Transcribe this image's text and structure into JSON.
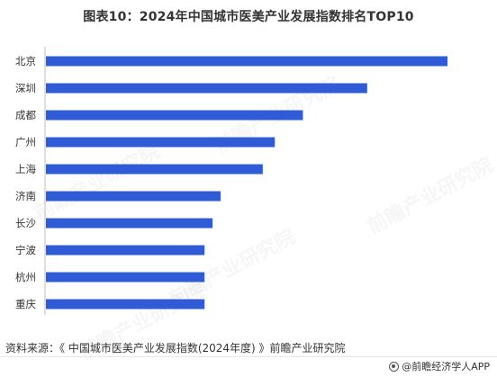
{
  "chart_data": {
    "type": "bar",
    "orientation": "horizontal",
    "title": "图表10：2024年中国城市医美产业发展指数排名TOP10",
    "categories": [
      "北京",
      "深圳",
      "成都",
      "广州",
      "上海",
      "济南",
      "长沙",
      "宁波",
      "杭州",
      "重庆"
    ],
    "values": [
      100,
      80.0,
      64.0,
      57.0,
      54.0,
      43.5,
      41.5,
      39.5,
      39.5,
      39.5
    ],
    "xlim": [
      0,
      100
    ],
    "grid": false,
    "legend": "none",
    "bar_color": "#2f5cd6"
  },
  "source": "资料来源：《 中国城市医美产业发展指数(2024年度) 》前瞻产业研究院",
  "brand": "@前瞻经济学人APP",
  "watermark": "前瞻产业研究院"
}
